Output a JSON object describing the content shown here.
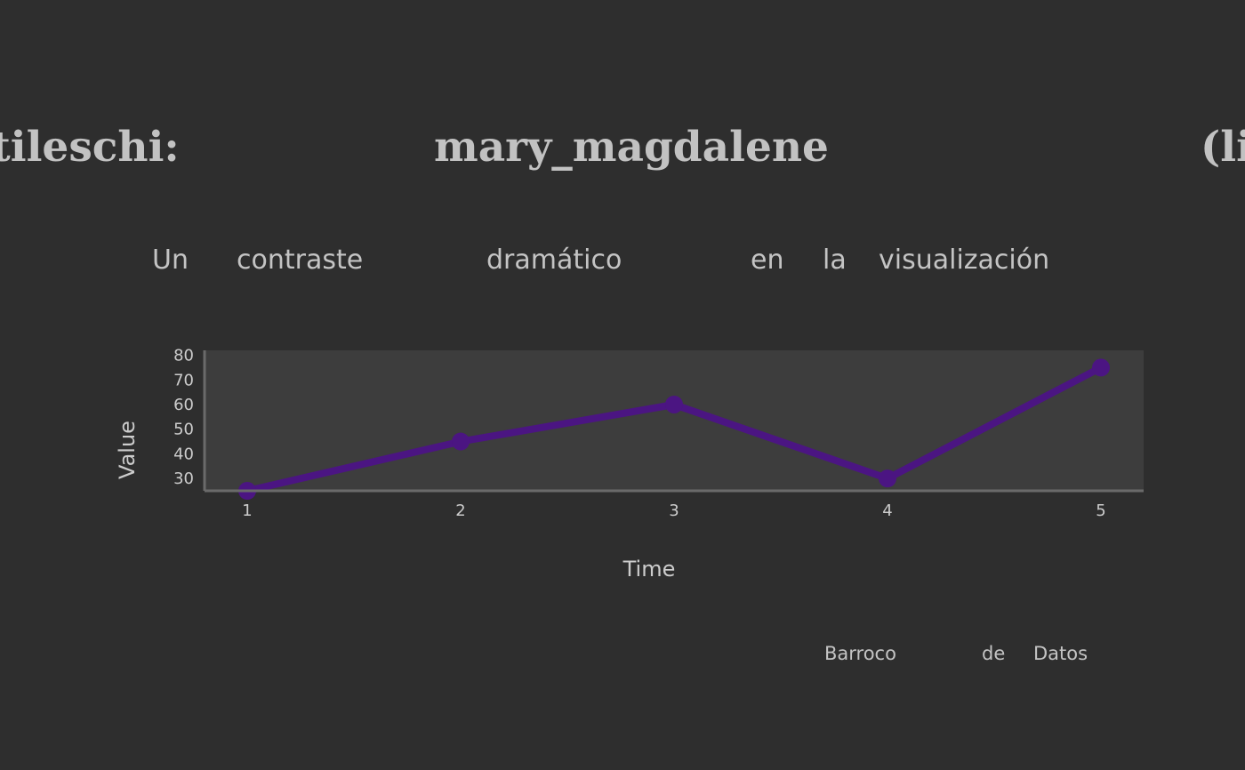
{
  "title": {
    "words": [
      "tileschi:",
      "mary_magdalene",
      "(li"
    ]
  },
  "subtitle": {
    "words": [
      "Un",
      "contraste",
      "dramático",
      "en",
      "la",
      "visualización"
    ]
  },
  "caption": {
    "words": [
      "Barroco",
      "de",
      "Datos"
    ]
  },
  "colors": {
    "background": "#2e2e2e",
    "plot_background": "#3d3d3d",
    "line": "#4b1582",
    "axis": "#6a6a6a",
    "text": "#c4c4c4"
  },
  "chart_data": {
    "type": "line",
    "x": [
      1,
      2,
      3,
      4,
      5
    ],
    "series": [
      {
        "values": [
          25,
          45,
          60,
          30,
          75
        ]
      }
    ],
    "xlabel": "Time",
    "ylabel": "Value",
    "xticks": [
      1,
      2,
      3,
      4,
      5
    ],
    "yticks": [
      30,
      40,
      50,
      60,
      70,
      80
    ],
    "xlim": [
      0.8,
      5.2
    ],
    "ylim": [
      25,
      82
    ],
    "grid": false,
    "legend": "none"
  }
}
